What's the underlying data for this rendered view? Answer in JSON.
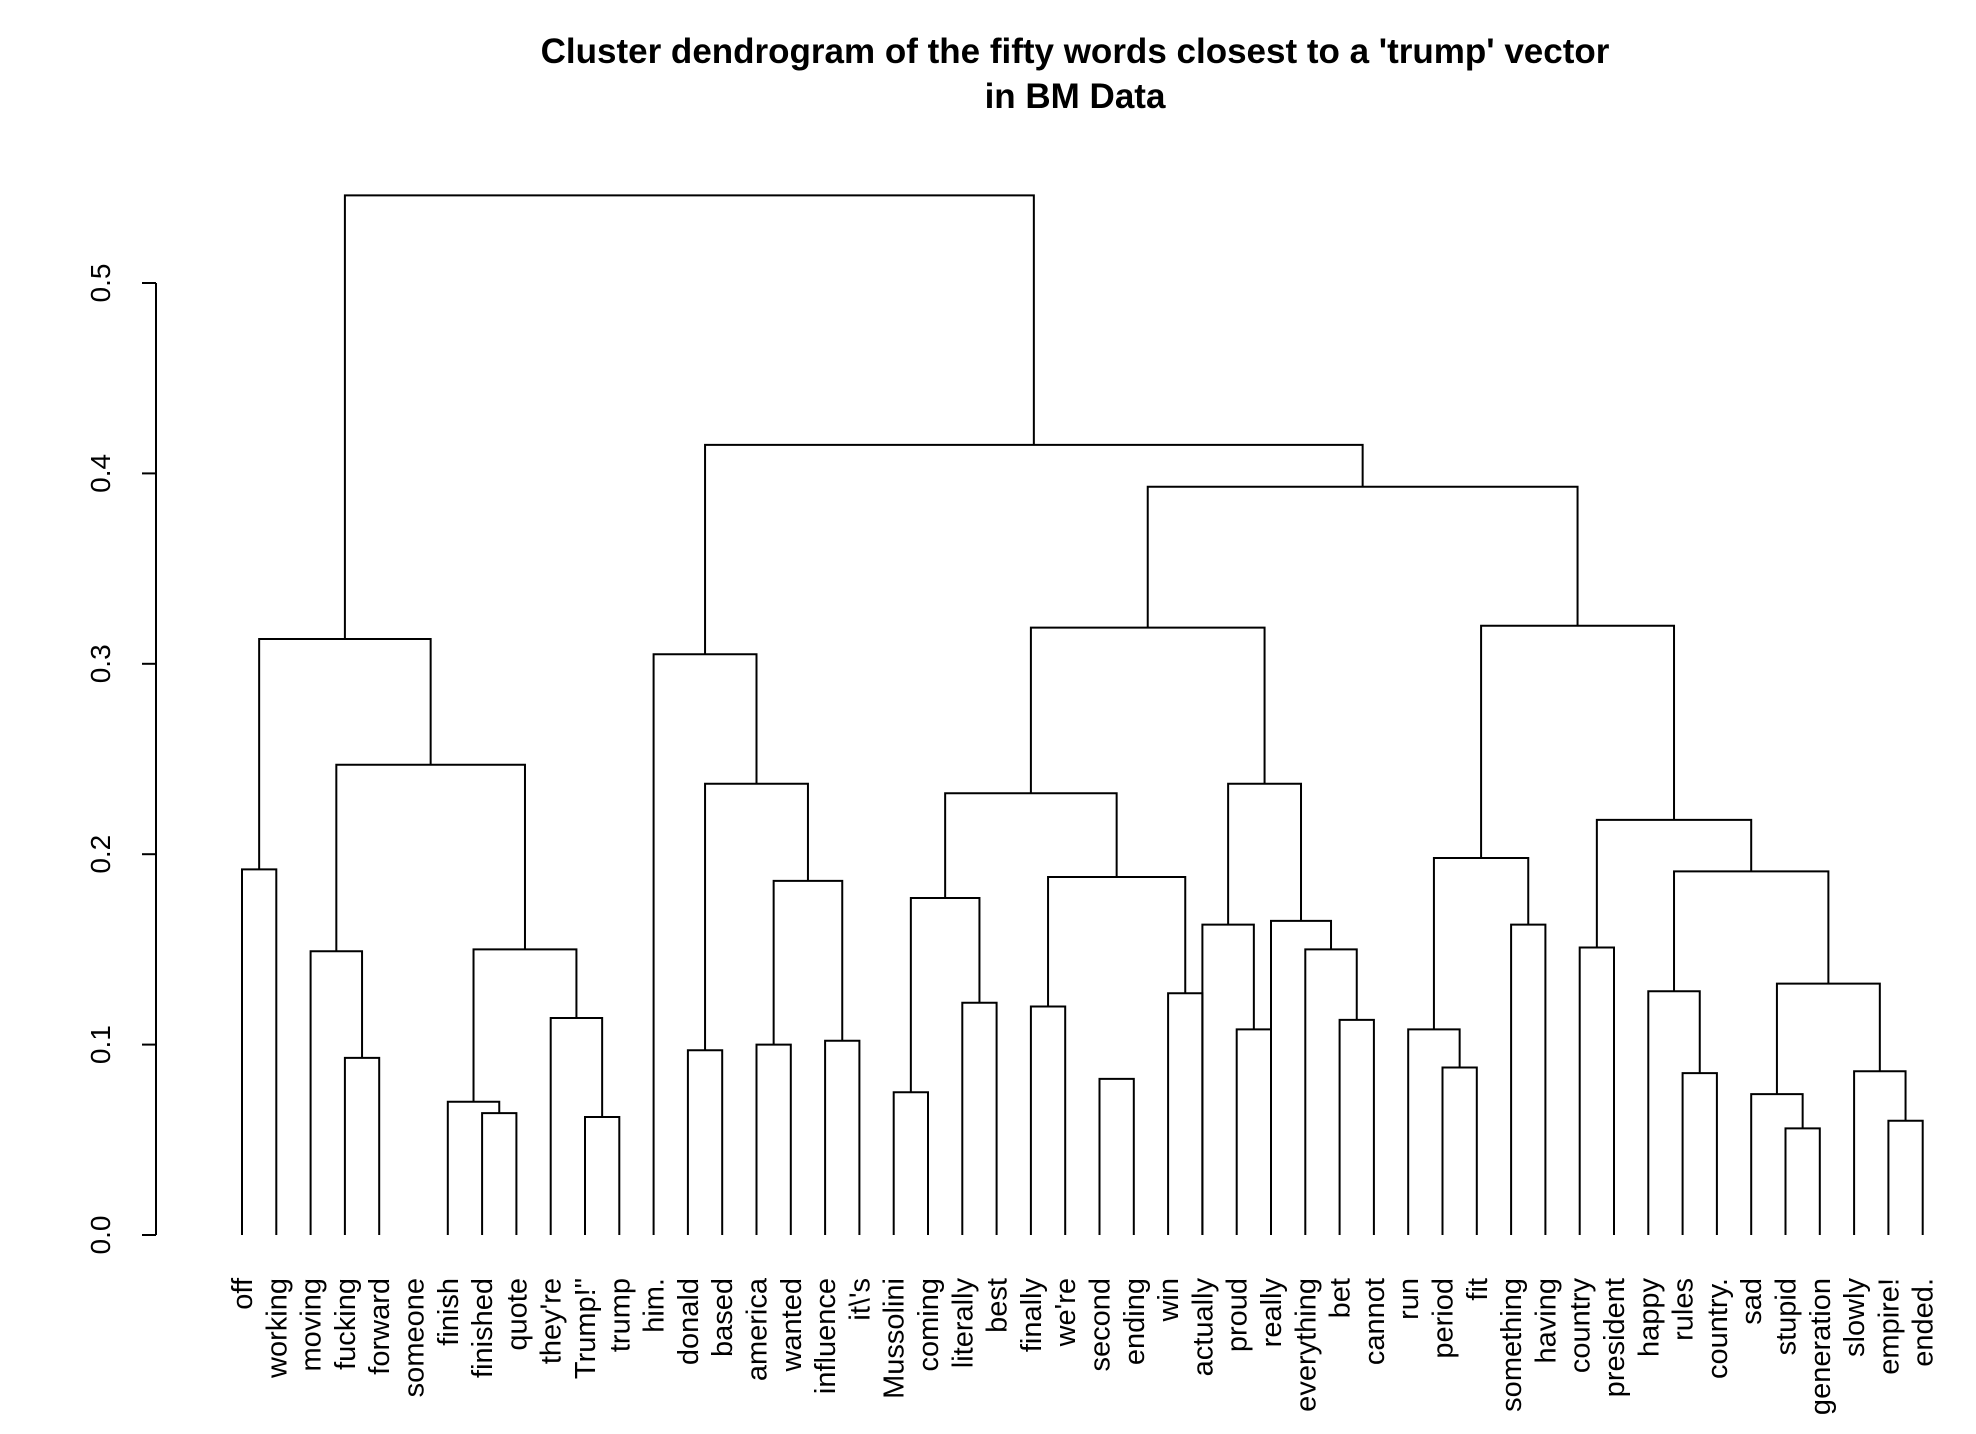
{
  "chart_data": {
    "type": "dendrogram",
    "title": "Cluster dendrogram of the fifty words closest to a 'trump' vector",
    "subtitle": "in BM Data",
    "ylabel": "",
    "ylim": [
      0,
      0.55
    ],
    "y_ticks": [
      "0.0",
      "0.1",
      "0.2",
      "0.3",
      "0.4",
      "0.5"
    ],
    "y_tick_values": [
      0,
      0.1,
      0.2,
      0.3,
      0.4,
      0.5
    ],
    "leaves": [
      "off",
      "working",
      "moving",
      "fucking",
      "forward",
      "someone",
      "finish",
      "finished",
      "quote",
      "they're",
      "Trump!\"",
      "trump",
      "him.",
      "donald",
      "based",
      "america",
      "wanted",
      "influence",
      "it\\'s",
      "Mussolini",
      "coming",
      "literally",
      "best",
      "finally",
      "we're",
      "second",
      "ending",
      "win",
      "actually",
      "proud",
      "really",
      "everything",
      "bet",
      "cannot",
      "run",
      "period",
      "fit",
      "something",
      "having",
      "country",
      "president",
      "happy",
      "rules",
      "country.",
      "sad",
      "stupid",
      "generation",
      "slowly",
      "empire!",
      "ended."
    ],
    "merges": [
      {
        "children": [
          "L1",
          "L2"
        ],
        "height": 0.192
      },
      {
        "children": [
          "L4",
          "L5"
        ],
        "height": 0.093
      },
      {
        "children": [
          "L3",
          "N2"
        ],
        "height": 0.149
      },
      {
        "children": [
          "L8",
          "L9"
        ],
        "height": 0.064
      },
      {
        "children": [
          "L7",
          "N4"
        ],
        "height": 0.07
      },
      {
        "children": [
          "L11",
          "L12"
        ],
        "height": 0.062
      },
      {
        "children": [
          "L10",
          "N6"
        ],
        "height": 0.114
      },
      {
        "children": [
          "N5",
          "N7"
        ],
        "height": 0.15
      },
      {
        "children": [
          "N3",
          "N8"
        ],
        "height": 0.247
      },
      {
        "children": [
          "N1",
          "N9"
        ],
        "height": 0.313
      },
      {
        "children": [
          "L14",
          "L15"
        ],
        "height": 0.097
      },
      {
        "children": [
          "L16",
          "L17"
        ],
        "height": 0.1
      },
      {
        "children": [
          "L18",
          "L19"
        ],
        "height": 0.102
      },
      {
        "children": [
          "N12",
          "N13"
        ],
        "height": 0.186
      },
      {
        "children": [
          "N11",
          "N14"
        ],
        "height": 0.237
      },
      {
        "children": [
          "L13",
          "N15"
        ],
        "height": 0.305
      },
      {
        "children": [
          "L20",
          "L21"
        ],
        "height": 0.075
      },
      {
        "children": [
          "L22",
          "L23"
        ],
        "height": 0.122
      },
      {
        "children": [
          "N17",
          "N18"
        ],
        "height": 0.177
      },
      {
        "children": [
          "L24",
          "L25"
        ],
        "height": 0.12
      },
      {
        "children": [
          "L26",
          "L27"
        ],
        "height": 0.082
      },
      {
        "children": [
          "L28",
          "L29"
        ],
        "height": 0.127
      },
      {
        "children": [
          "N20",
          "N22"
        ],
        "height": 0.188
      },
      {
        "children": [
          "N19",
          "N23"
        ],
        "height": 0.232
      },
      {
        "children": [
          "L30",
          "L31"
        ],
        "height": 0.108
      },
      {
        "children": [
          "L29",
          "N25"
        ],
        "height": 0.163
      },
      {
        "children": [
          "L33",
          "L34"
        ],
        "height": 0.113
      },
      {
        "children": [
          "L32",
          "N27"
        ],
        "height": 0.15
      },
      {
        "children": [
          "L31",
          "N28"
        ],
        "height": 0.165
      },
      {
        "children": [
          "N26",
          "N29"
        ],
        "height": 0.237
      },
      {
        "children": [
          "N24",
          "N30"
        ],
        "height": 0.319
      },
      {
        "children": [
          "L36",
          "L37"
        ],
        "height": 0.088
      },
      {
        "children": [
          "L35",
          "N32"
        ],
        "height": 0.108
      },
      {
        "children": [
          "L38",
          "L39"
        ],
        "height": 0.163
      },
      {
        "children": [
          "N33",
          "N34"
        ],
        "height": 0.198
      },
      {
        "children": [
          "L40",
          "L41"
        ],
        "height": 0.151
      },
      {
        "children": [
          "L43",
          "L44"
        ],
        "height": 0.085
      },
      {
        "children": [
          "L42",
          "N37"
        ],
        "height": 0.128
      },
      {
        "children": [
          "L46",
          "L47"
        ],
        "height": 0.056
      },
      {
        "children": [
          "L45",
          "N39"
        ],
        "height": 0.074
      },
      {
        "children": [
          "L49",
          "L50"
        ],
        "height": 0.06
      },
      {
        "children": [
          "L48",
          "N41"
        ],
        "height": 0.086
      },
      {
        "children": [
          "N40",
          "N42"
        ],
        "height": 0.132
      },
      {
        "children": [
          "N38",
          "N43"
        ],
        "height": 0.191
      },
      {
        "children": [
          "N36",
          "N44"
        ],
        "height": 0.218
      },
      {
        "children": [
          "N35",
          "N45"
        ],
        "height": 0.32
      },
      {
        "children": [
          "N31",
          "N46"
        ],
        "height": 0.393
      },
      {
        "children": [
          "N16",
          "N47"
        ],
        "height": 0.415
      },
      {
        "children": [
          "N10",
          "N48"
        ],
        "height": 0.546
      }
    ]
  }
}
